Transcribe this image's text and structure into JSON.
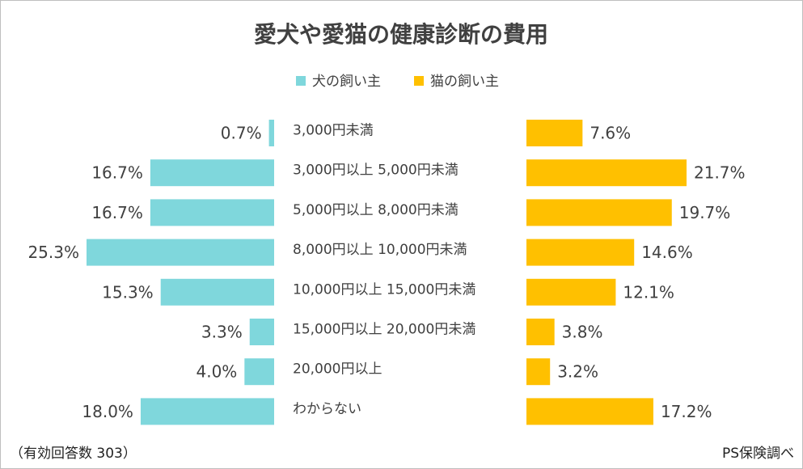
{
  "chart_data": {
    "type": "bar",
    "title": "愛犬や愛猫の健康診断の費用",
    "categories": [
      "3,000円未満",
      "3,000円以上 5,000円未満",
      "5,000円以上 8,000円未満",
      "8,000円以上 10,000円未満",
      "10,000円以上 15,000円未満",
      "15,000円以上 20,000円未満",
      "20,000円以上",
      "わからない"
    ],
    "series": [
      {
        "name": "犬の飼い主",
        "color": "#7fd7dc",
        "values": [
          0.7,
          16.7,
          16.7,
          25.3,
          15.3,
          3.3,
          4.0,
          18.0
        ],
        "labels": [
          "0.7%",
          "16.7%",
          "16.7%",
          "25.3%",
          "15.3%",
          "3.3%",
          "4.0%",
          "18.0%"
        ]
      },
      {
        "name": "猫の飼い主",
        "color": "#ffc000",
        "values": [
          7.6,
          21.7,
          19.7,
          14.6,
          12.1,
          3.8,
          3.2,
          17.2
        ],
        "labels": [
          "7.6%",
          "21.7%",
          "19.7%",
          "14.6%",
          "12.1%",
          "3.8%",
          "3.2%",
          "17.2%"
        ]
      }
    ],
    "xlabel": "",
    "ylabel": "",
    "unit": "%",
    "legend_position": "top-center"
  },
  "footer": {
    "note": "（有効回答数 303）",
    "source": "PS保険調べ"
  }
}
